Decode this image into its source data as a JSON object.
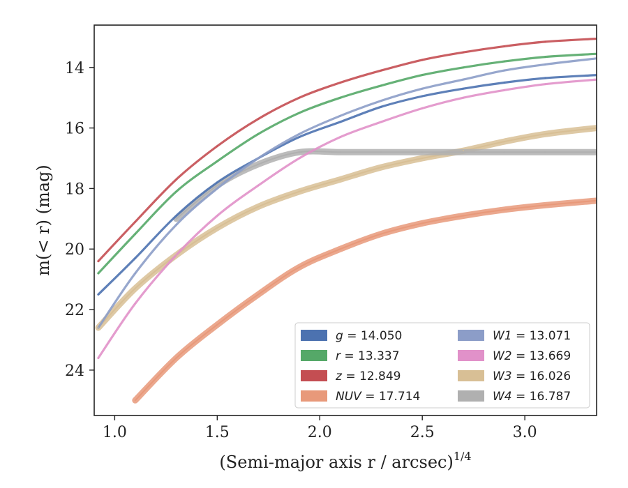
{
  "chart_data": {
    "type": "line",
    "xlabel": "(Semi-major axis r / arcsec)",
    "xlabel_exp": "1/4",
    "ylabel": "m(< r) (mag)",
    "xlim": [
      0.9,
      3.35
    ],
    "ylim": [
      25.5,
      12.6
    ],
    "y_inverted": true,
    "x_ticks": [
      1.0,
      1.5,
      2.0,
      2.5,
      3.0
    ],
    "x_tick_labels": [
      "1.0",
      "1.5",
      "2.0",
      "2.5",
      "3.0"
    ],
    "y_ticks": [
      14,
      16,
      18,
      20,
      22,
      24
    ],
    "y_tick_labels": [
      "14",
      "16",
      "18",
      "20",
      "22",
      "24"
    ],
    "grid": false,
    "legend_placement": "lower-right",
    "series": [
      {
        "name": "g = 14.050",
        "legend_sym": "g",
        "legend_val": "14.050",
        "color": "#4c72b0",
        "kind": "line",
        "x": [
          0.92,
          1.1,
          1.3,
          1.5,
          1.7,
          1.9,
          2.1,
          2.3,
          2.5,
          2.7,
          2.9,
          3.1,
          3.35
        ],
        "y": [
          21.5,
          20.3,
          18.9,
          17.8,
          17.0,
          16.3,
          15.8,
          15.3,
          14.95,
          14.7,
          14.5,
          14.35,
          14.25
        ]
      },
      {
        "name": "r = 13.337",
        "legend_sym": "r",
        "legend_val": "13.337",
        "color": "#55a868",
        "kind": "line",
        "x": [
          0.92,
          1.1,
          1.3,
          1.5,
          1.7,
          1.9,
          2.1,
          2.3,
          2.5,
          2.7,
          2.9,
          3.1,
          3.35
        ],
        "y": [
          20.8,
          19.5,
          18.1,
          17.1,
          16.2,
          15.5,
          15.0,
          14.6,
          14.25,
          14.0,
          13.8,
          13.65,
          13.55
        ]
      },
      {
        "name": "z = 12.849",
        "legend_sym": "z",
        "legend_val": "12.849",
        "color": "#c44e52",
        "kind": "line",
        "x": [
          0.92,
          1.1,
          1.3,
          1.5,
          1.7,
          1.9,
          2.1,
          2.3,
          2.5,
          2.7,
          2.9,
          3.1,
          3.35
        ],
        "y": [
          20.4,
          19.1,
          17.7,
          16.6,
          15.7,
          15.0,
          14.5,
          14.1,
          13.75,
          13.5,
          13.3,
          13.15,
          13.05
        ]
      },
      {
        "name": "NUV = 17.714",
        "legend_sym": "NUV",
        "legend_val": "17.714",
        "color": "#e8997a",
        "kind": "band",
        "x": [
          1.1,
          1.3,
          1.5,
          1.7,
          1.9,
          2.1,
          2.3,
          2.5,
          2.7,
          2.9,
          3.1,
          3.35
        ],
        "y": [
          25.0,
          23.6,
          22.5,
          21.5,
          20.6,
          20.0,
          19.5,
          19.15,
          18.9,
          18.7,
          18.55,
          18.4
        ]
      },
      {
        "name": "W1 = 13.071",
        "legend_sym": "W1",
        "legend_val": "13.071",
        "color": "#8c9dc8",
        "kind": "line",
        "x": [
          0.92,
          1.1,
          1.3,
          1.5,
          1.7,
          1.9,
          2.1,
          2.3,
          2.5,
          2.7,
          2.9,
          3.1,
          3.35
        ],
        "y": [
          22.6,
          20.8,
          19.2,
          18.0,
          17.0,
          16.2,
          15.6,
          15.1,
          14.7,
          14.4,
          14.1,
          13.9,
          13.7
        ]
      },
      {
        "name": "W2 = 13.669",
        "legend_sym": "W2",
        "legend_val": "13.669",
        "color": "#e191c9",
        "kind": "line",
        "x": [
          0.92,
          1.1,
          1.3,
          1.5,
          1.7,
          1.9,
          2.1,
          2.3,
          2.5,
          2.7,
          2.9,
          3.1,
          3.35
        ],
        "y": [
          23.6,
          21.8,
          20.2,
          18.9,
          17.9,
          17.0,
          16.3,
          15.8,
          15.35,
          15.0,
          14.75,
          14.55,
          14.4
        ]
      },
      {
        "name": "W3 = 16.026",
        "legend_sym": "W3",
        "legend_val": "16.026",
        "color": "#d8bf95",
        "kind": "band",
        "x": [
          0.92,
          1.1,
          1.3,
          1.5,
          1.7,
          1.9,
          2.1,
          2.3,
          2.5,
          2.7,
          2.9,
          3.1,
          3.35
        ],
        "y": [
          22.6,
          21.3,
          20.2,
          19.3,
          18.6,
          18.1,
          17.7,
          17.3,
          17.0,
          16.75,
          16.45,
          16.2,
          16.0
        ]
      },
      {
        "name": "W4 = 16.787",
        "legend_sym": "W4",
        "legend_val": "16.787",
        "color": "#b0b0b0",
        "kind": "band",
        "x": [
          1.3,
          1.5,
          1.7,
          1.9,
          2.1,
          2.3,
          2.5,
          2.7,
          2.9,
          3.1,
          3.35
        ],
        "y": [
          19.0,
          17.9,
          17.2,
          16.8,
          16.8,
          16.8,
          16.8,
          16.8,
          16.8,
          16.8,
          16.8
        ]
      }
    ]
  }
}
